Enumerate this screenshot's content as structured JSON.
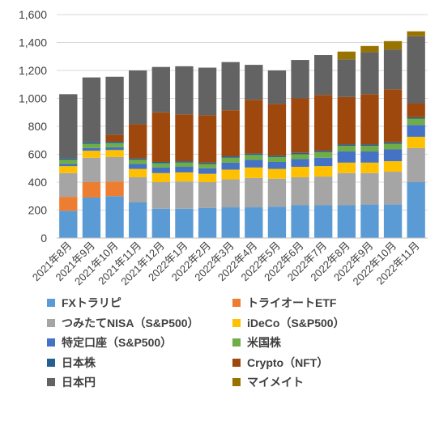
{
  "chart_data": {
    "type": "bar",
    "stacked": true,
    "categories": [
      "2021年8月",
      "2021年9月",
      "2021年10月",
      "2021年11月",
      "2021年12月",
      "2022年1月",
      "2022年2月",
      "2022年3月",
      "2022年4月",
      "2022年5月",
      "2022年6月",
      "2022年7月",
      "2022年8月",
      "2022年9月",
      "2022年10月",
      "2022年11月"
    ],
    "ylim": [
      0,
      1600
    ],
    "yticks": [
      "0",
      "200",
      "400",
      "600",
      "800",
      "1,000",
      "1,200",
      "1,400",
      "1,600"
    ],
    "grid": true,
    "legend_position": "bottom",
    "series": [
      {
        "name": "FXトラリピ",
        "color": "#5B9BD5",
        "values": [
          195,
          290,
          300,
          255,
          210,
          210,
          215,
          220,
          220,
          225,
          235,
          235,
          235,
          240,
          240,
          400
        ]
      },
      {
        "name": "トライオートETF",
        "color": "#ED7D31",
        "values": [
          100,
          110,
          105,
          0,
          0,
          0,
          0,
          0,
          0,
          0,
          0,
          0,
          0,
          0,
          0,
          0
        ]
      },
      {
        "name": "つみたてNISA（S&P500）",
        "color": "#A5A5A5",
        "values": [
          170,
          175,
          175,
          180,
          190,
          195,
          185,
          200,
          210,
          200,
          200,
          205,
          230,
          225,
          235,
          245
        ]
      },
      {
        "name": "iDeCo（S&P500）",
        "color": "#FFC000",
        "values": [
          50,
          50,
          50,
          60,
          65,
          65,
          60,
          70,
          75,
          70,
          75,
          75,
          75,
          75,
          75,
          80
        ]
      },
      {
        "name": "特定口座（S&P500）",
        "color": "#4472C4",
        "values": [
          15,
          20,
          20,
          35,
          40,
          40,
          40,
          50,
          55,
          50,
          55,
          60,
          80,
          80,
          85,
          85
        ]
      },
      {
        "name": "米国株",
        "color": "#70AD47",
        "values": [
          30,
          30,
          30,
          30,
          30,
          30,
          30,
          35,
          35,
          35,
          35,
          40,
          40,
          40,
          40,
          45
        ]
      },
      {
        "name": "日本株",
        "color": "#255E91",
        "values": [
          10,
          10,
          10,
          10,
          10,
          10,
          10,
          10,
          10,
          10,
          10,
          10,
          10,
          10,
          10,
          10
        ]
      },
      {
        "name": "Crypto（NFT）",
        "color": "#9E480E",
        "values": [
          0,
          0,
          50,
          245,
          355,
          335,
          340,
          330,
          385,
          370,
          390,
          400,
          340,
          360,
          380,
          100
        ]
      },
      {
        "name": "日本円",
        "color": "#636363",
        "values": [
          460,
          465,
          415,
          385,
          325,
          345,
          340,
          345,
          250,
          240,
          275,
          285,
          270,
          300,
          285,
          480
        ]
      },
      {
        "name": "マイメイト",
        "color": "#997300",
        "values": [
          0,
          0,
          0,
          0,
          0,
          0,
          0,
          0,
          0,
          0,
          0,
          0,
          55,
          45,
          60,
          35
        ]
      }
    ]
  }
}
